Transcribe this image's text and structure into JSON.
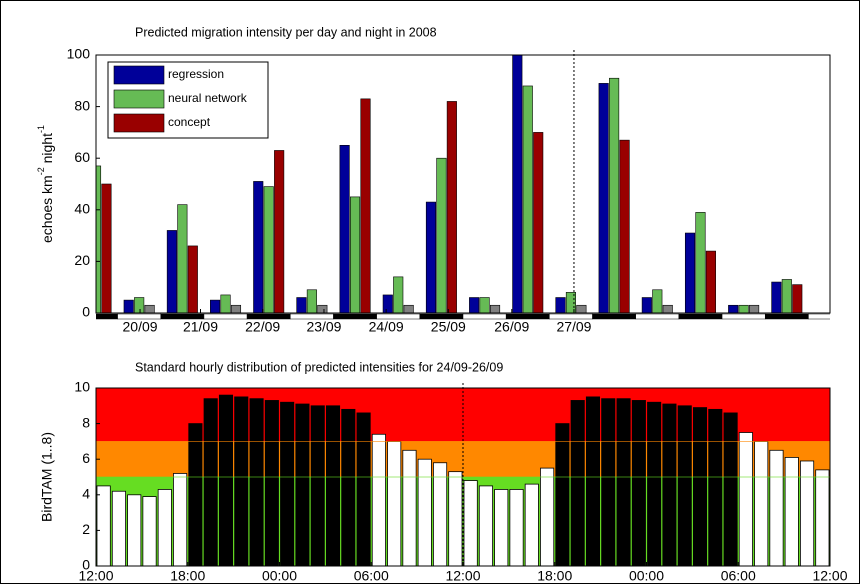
{
  "chart_data": [
    {
      "type": "bar",
      "title": "Predicted migration intensity per day and night in 2008",
      "ylabel_parts": [
        "echoes km",
        "-2",
        " night",
        "-1"
      ],
      "x": [
        0,
        1,
        2,
        3,
        4,
        5,
        6,
        7,
        8,
        9,
        10,
        11,
        12,
        13,
        14,
        15,
        16,
        17
      ],
      "xlim": [
        0,
        17
      ],
      "xticks": [
        {
          "value": 1.02,
          "label": "20/09"
        },
        {
          "value": 2.42,
          "label": "21/09"
        },
        {
          "value": 3.86,
          "label": "22/09"
        },
        {
          "value": 5.28,
          "label": "23/09"
        },
        {
          "value": 6.72,
          "label": "24/09"
        },
        {
          "value": 8.16,
          "label": "25/09"
        },
        {
          "value": 9.63,
          "label": "26/09"
        },
        {
          "value": 11.07,
          "label": "27/09"
        }
      ],
      "ylim": [
        0,
        100
      ],
      "yticks": [
        0,
        20,
        40,
        60,
        80,
        100
      ],
      "legend": "upper left",
      "marker_x": 11.07,
      "series": [
        {
          "name": "regression",
          "color": "#000099",
          "values": [
            null,
            5,
            32,
            5,
            51,
            6,
            65,
            7,
            43,
            6,
            100,
            6,
            89,
            6,
            31,
            3,
            12,
            null
          ]
        },
        {
          "name": "neural network",
          "color": "#66bb55",
          "values": [
            57,
            6,
            42,
            7,
            49,
            9,
            45,
            14,
            60,
            6,
            88,
            8,
            91,
            9,
            39,
            3,
            13,
            null
          ]
        },
        {
          "name": "concept",
          "color": "#990000",
          "values": [
            50,
            null,
            26,
            null,
            63,
            null,
            83,
            null,
            82,
            null,
            70,
            null,
            67,
            null,
            24,
            null,
            11,
            null
          ]
        },
        {
          "color": "#808080",
          "values": [
            null,
            3,
            null,
            3,
            null,
            3,
            null,
            3,
            null,
            3,
            null,
            3,
            null,
            3,
            null,
            3,
            null,
            3
          ]
        }
      ]
    },
    {
      "type": "bar",
      "title": "Standard hourly distribution of predicted intensities for 24/09-26/09",
      "ylabel": "BirdTAM (1..8)",
      "xlim": [
        0,
        48
      ],
      "xticks": [
        {
          "value": 0,
          "label": "12:00"
        },
        {
          "value": 6,
          "label": "18:00"
        },
        {
          "value": 12,
          "label": "00:00"
        },
        {
          "value": 18,
          "label": "06:00"
        },
        {
          "value": 24,
          "label": "12:00"
        },
        {
          "value": 30,
          "label": "18:00"
        },
        {
          "value": 36,
          "label": "00:00"
        },
        {
          "value": 42,
          "label": "06:00"
        },
        {
          "value": 48,
          "label": "12:00"
        }
      ],
      "ylim": [
        0,
        10
      ],
      "yticks": [
        0,
        2,
        4,
        6,
        8,
        10
      ],
      "marker_x": 24,
      "bands": [
        {
          "from": 0,
          "to": 5,
          "color": "#66dd22"
        },
        {
          "from": 5,
          "to": 7,
          "color": "#ff8800"
        },
        {
          "from": 7,
          "to": 10,
          "color": "#ff0000"
        }
      ],
      "series": [
        {
          "color": "#ffffff",
          "values": [
            4.5,
            4.2,
            4.0,
            3.9,
            4.3,
            5.2,
            null,
            null,
            null,
            null,
            null,
            null,
            null,
            null,
            null,
            null,
            null,
            null,
            7.4,
            7.0,
            6.5,
            6.0,
            5.8,
            5.3,
            4.8,
            4.5,
            4.3,
            4.3,
            4.6,
            5.5,
            null,
            null,
            null,
            null,
            null,
            null,
            null,
            null,
            null,
            null,
            null,
            null,
            7.5,
            7.0,
            6.5,
            6.1,
            5.9,
            5.4
          ]
        },
        {
          "color": "#000000",
          "values": [
            null,
            null,
            null,
            null,
            null,
            null,
            8.0,
            9.4,
            9.6,
            9.5,
            9.4,
            9.3,
            9.2,
            9.1,
            9.0,
            9.0,
            8.8,
            8.6,
            null,
            null,
            null,
            null,
            null,
            null,
            null,
            null,
            null,
            null,
            null,
            null,
            8.0,
            9.3,
            9.5,
            9.4,
            9.4,
            9.3,
            9.2,
            9.1,
            9.0,
            8.9,
            8.8,
            8.6,
            null,
            null,
            null,
            null,
            null,
            null
          ]
        }
      ]
    }
  ]
}
